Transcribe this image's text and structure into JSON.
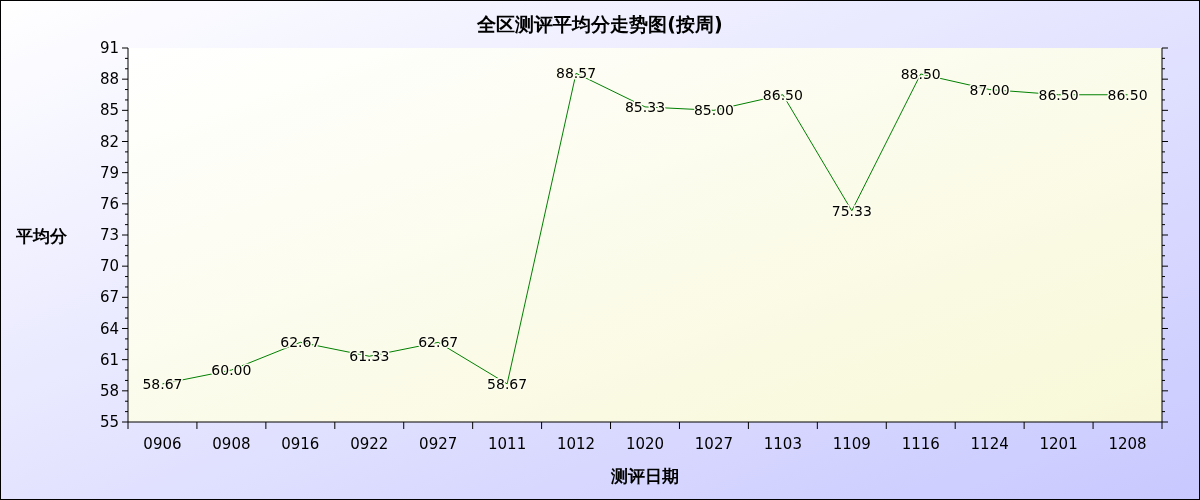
{
  "chart_data": {
    "type": "line",
    "title": "全区测评平均分走势图(按周)",
    "xlabel": "测评日期",
    "ylabel": "平均分",
    "categories": [
      "0906",
      "0908",
      "0916",
      "0922",
      "0927",
      "1011",
      "1012",
      "1020",
      "1027",
      "1103",
      "1109",
      "1116",
      "1124",
      "1201",
      "1208"
    ],
    "series": [
      {
        "color": "#008000",
        "values": [
          58.67,
          60.0,
          62.67,
          61.33,
          62.67,
          58.67,
          88.57,
          85.33,
          85.0,
          86.5,
          75.33,
          88.5,
          87.0,
          86.5,
          86.5
        ],
        "value_labels": [
          "58.67",
          "60.00",
          "62.67",
          "61.33",
          "62.67",
          "58.67",
          "88.57",
          "85.33",
          "85.00",
          "86.50",
          "75.33",
          "88.50",
          "87.00",
          "86.50",
          "86.50"
        ]
      }
    ],
    "ylim": [
      55,
      91
    ],
    "yticks": [
      55,
      58,
      61,
      64,
      67,
      70,
      73,
      76,
      79,
      82,
      85,
      88,
      91
    ],
    "grid": false,
    "marker": "none",
    "line_style": "solid"
  }
}
